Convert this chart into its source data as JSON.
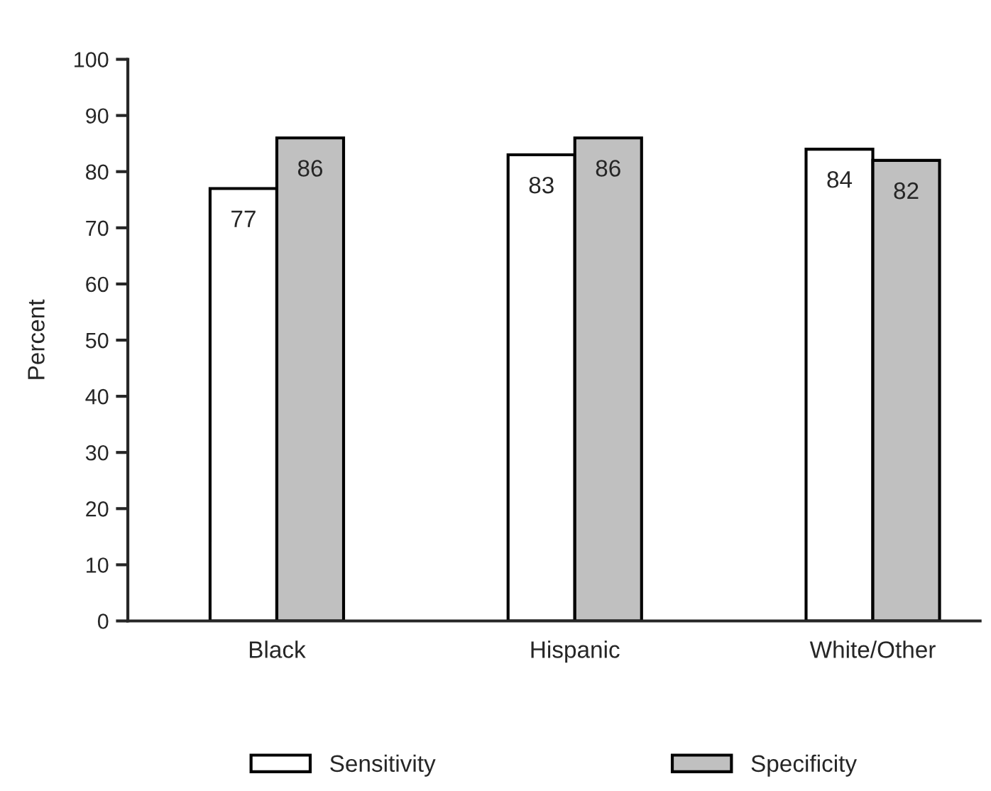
{
  "chart_data": {
    "type": "bar",
    "ylabel": "Percent",
    "categories": [
      "Black",
      "Hispanic",
      "White/Other"
    ],
    "series": [
      {
        "name": "Sensitivity",
        "color": "#ffffff",
        "values": [
          77,
          83,
          84
        ]
      },
      {
        "name": "Specificity",
        "color": "#c0c0c0",
        "values": [
          86,
          86,
          82
        ]
      }
    ],
    "ylim": [
      0,
      100
    ],
    "yticks": [
      0,
      10,
      20,
      30,
      40,
      50,
      60,
      70,
      80,
      90,
      100
    ],
    "data_labels": true,
    "legend": "bottom",
    "grid": false
  }
}
